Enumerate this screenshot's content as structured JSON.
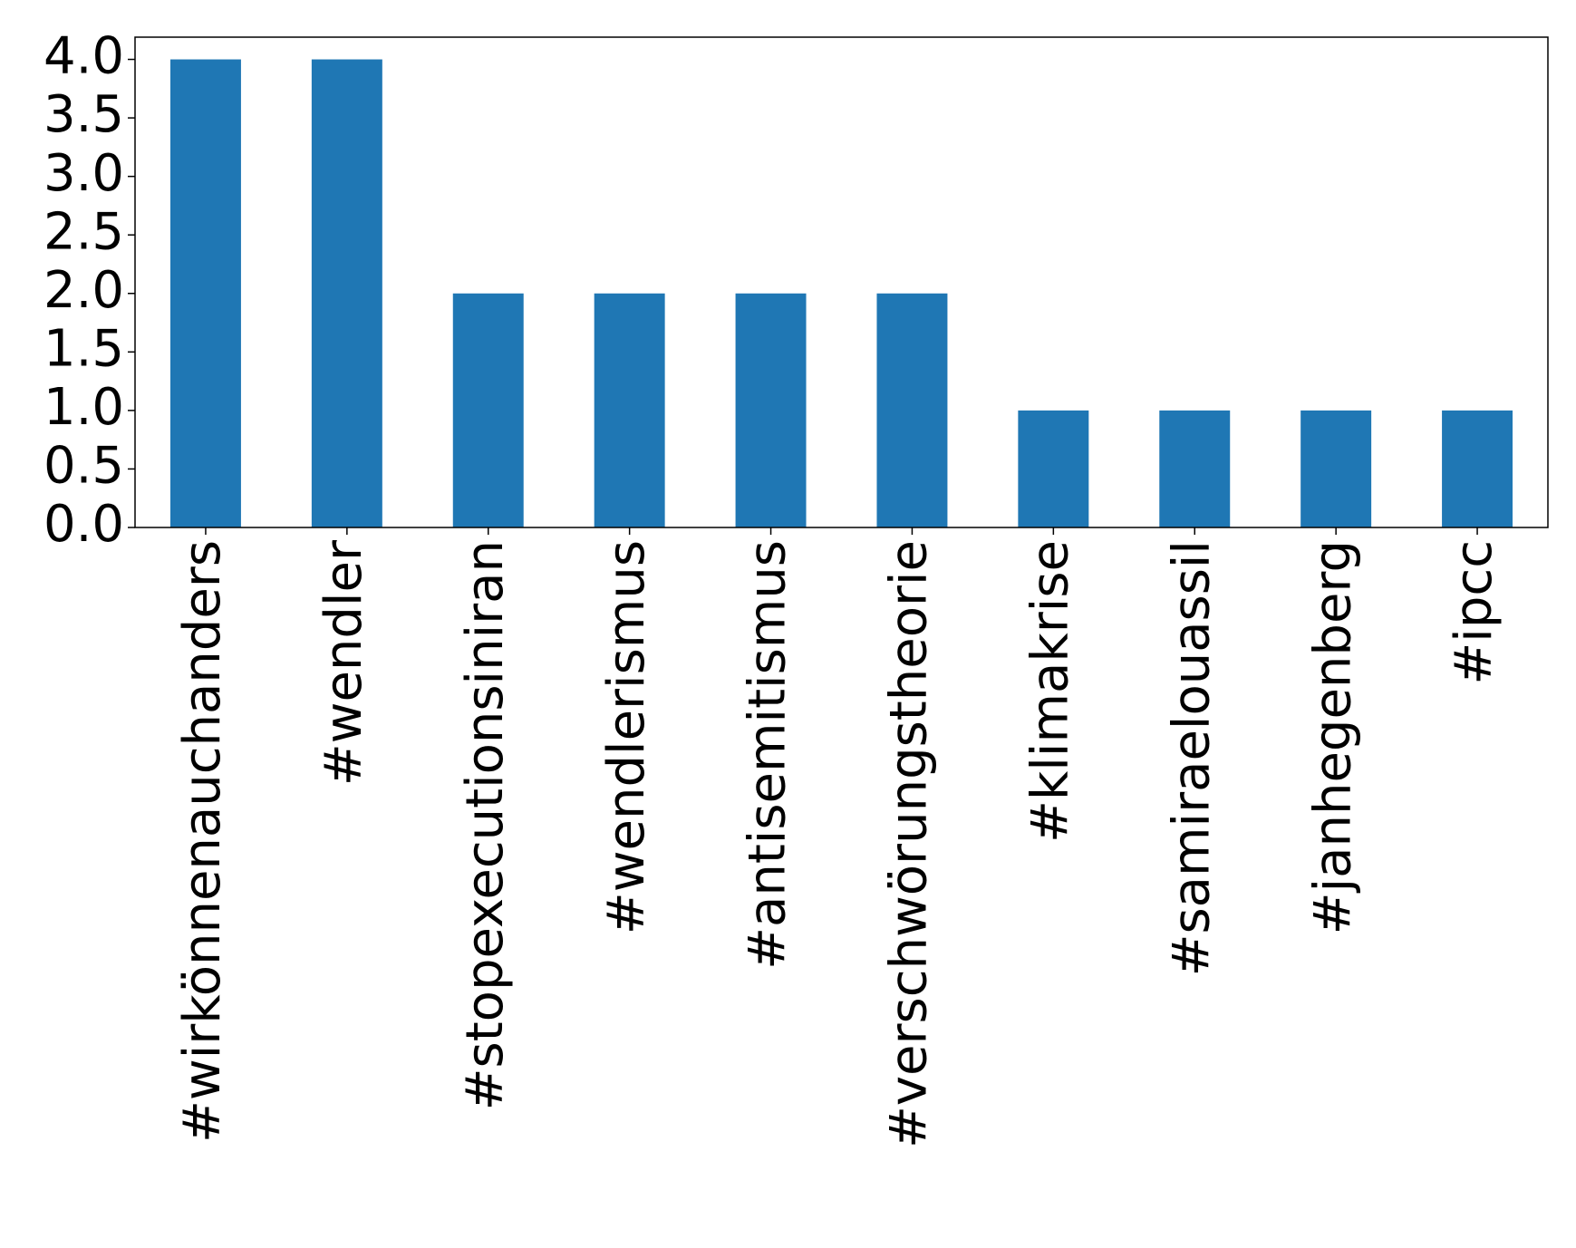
{
  "chart_data": {
    "type": "bar",
    "categories": [
      "#wirkönnenauchanders",
      "#wendler",
      "#stopexecutionsiniran",
      "#wendlerismus",
      "#antisemitismus",
      "#verschwörungstheorie",
      "#klimakrise",
      "#samiraelouassil",
      "#janhegenberg",
      "#ipcc"
    ],
    "values": [
      4,
      4,
      2,
      2,
      2,
      2,
      1,
      1,
      1,
      1
    ],
    "color": "#1f77b4",
    "ylim": [
      0,
      4.19
    ],
    "yticks": [
      {
        "value": 0,
        "label": "0.0"
      },
      {
        "value": 0.5,
        "label": "0.5"
      },
      {
        "value": 1,
        "label": "1.0"
      },
      {
        "value": 1.5,
        "label": "1.5"
      },
      {
        "value": 2,
        "label": "2.0"
      },
      {
        "value": 2.5,
        "label": "2.5"
      },
      {
        "value": 3,
        "label": "3.0"
      },
      {
        "value": 3.5,
        "label": "3.5"
      },
      {
        "value": 4,
        "label": "4.0"
      }
    ],
    "grid": false
  }
}
